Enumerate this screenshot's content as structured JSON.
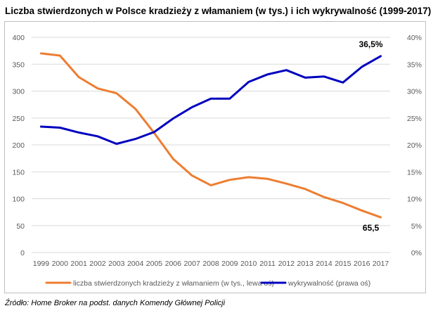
{
  "title": "Liczba stwierdzonych w Polsce kradzieży z włamaniem (w tys.) i ich wykrywalność (1999-2017)",
  "source": "Źródło: Home Broker na podst. danych Komendy Głównej Policji",
  "chart_data": {
    "type": "line",
    "categories": [
      "1999",
      "2000",
      "2001",
      "2002",
      "2003",
      "2004",
      "2005",
      "2006",
      "2007",
      "2008",
      "2009",
      "2010",
      "2011",
      "2012",
      "2013",
      "2014",
      "2015",
      "2016",
      "2017"
    ],
    "left_axis": {
      "range": [
        0,
        400
      ],
      "ticks": [
        "0",
        "50",
        "100",
        "150",
        "200",
        "250",
        "300",
        "350",
        "400"
      ]
    },
    "right_axis": {
      "range": [
        0,
        40
      ],
      "ticks": [
        "0%",
        "5%",
        "10%",
        "15%",
        "20%",
        "25%",
        "30%",
        "35%",
        "40%"
      ]
    },
    "grid": true,
    "legend_position": "bottom",
    "series": [
      {
        "name": "liczba stwierdzonych kradzieży z włamaniem (w tys., lewa oś)",
        "axis": "left",
        "color": "#ED7D31",
        "values": [
          370,
          366,
          326,
          305,
          296,
          267,
          222,
          174,
          143,
          125,
          135,
          140,
          137,
          128,
          118,
          103,
          92,
          78,
          65.5
        ],
        "end_label": "65,5"
      },
      {
        "name": "wykrywalność (prawa oś)",
        "axis": "right",
        "color": "#0000BF",
        "values": [
          23.4,
          23.2,
          22.3,
          21.6,
          20.2,
          21.1,
          22.4,
          24.9,
          27.0,
          28.6,
          28.6,
          31.7,
          33.1,
          33.9,
          32.5,
          32.7,
          31.6,
          34.5,
          36.5
        ],
        "end_label": "36,5%"
      }
    ]
  }
}
